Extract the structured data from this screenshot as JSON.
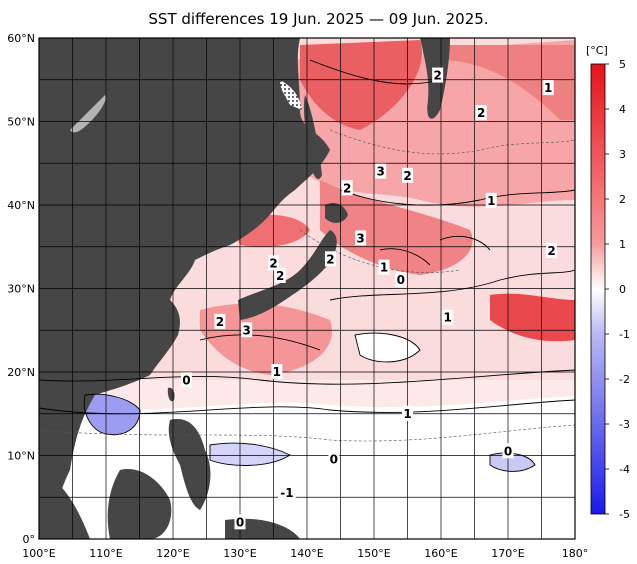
{
  "title": "SST differences 19 Jun. 2025 — 09 Jun. 2025.",
  "axes": {
    "lon_labels": [
      "100°E",
      "110°E",
      "120°E",
      "130°E",
      "140°E",
      "150°E",
      "160°E",
      "170°E",
      "180°"
    ],
    "lat_labels": [
      "60°N",
      "50°N",
      "40°N",
      "30°N",
      "20°N",
      "10°N",
      "0°"
    ],
    "lon_range": [
      100,
      180
    ],
    "lat_range": [
      0,
      60
    ]
  },
  "colorbar": {
    "unit": "[°C]",
    "tick_labels": [
      "5",
      "4",
      "3",
      "2",
      "1",
      "0",
      "-1",
      "-2",
      "-3",
      "-4",
      "-5"
    ],
    "max_color": "#e8131a",
    "zero_color": "#ffffff",
    "min_color": "#1a1aee"
  },
  "contour_labels": [
    {
      "text": "2",
      "lon": 159.5,
      "lat": 55.5
    },
    {
      "text": "2",
      "lon": 166,
      "lat": 51
    },
    {
      "text": "1",
      "lon": 176,
      "lat": 54
    },
    {
      "text": "3",
      "lon": 151,
      "lat": 44
    },
    {
      "text": "2",
      "lon": 155,
      "lat": 43.5
    },
    {
      "text": "2",
      "lon": 146,
      "lat": 42
    },
    {
      "text": "1",
      "lon": 167.5,
      "lat": 40.5
    },
    {
      "text": "3",
      "lon": 148,
      "lat": 36
    },
    {
      "text": "2",
      "lon": 143.5,
      "lat": 33.5
    },
    {
      "text": "1",
      "lon": 151.5,
      "lat": 32.5
    },
    {
      "text": "0",
      "lon": 154,
      "lat": 31
    },
    {
      "text": "2",
      "lon": 176.5,
      "lat": 34.5
    },
    {
      "text": "2",
      "lon": 135,
      "lat": 33
    },
    {
      "text": "2",
      "lon": 136,
      "lat": 31.5
    },
    {
      "text": "1",
      "lon": 161,
      "lat": 26.5
    },
    {
      "text": "2",
      "lon": 127,
      "lat": 26
    },
    {
      "text": "3",
      "lon": 131,
      "lat": 25
    },
    {
      "text": "1",
      "lon": 135.5,
      "lat": 20
    },
    {
      "text": "0",
      "lon": 122,
      "lat": 19
    },
    {
      "text": "1",
      "lon": 155,
      "lat": 15
    },
    {
      "text": "0",
      "lon": 144,
      "lat": 9.5
    },
    {
      "text": "0",
      "lon": 170,
      "lat": 10.5
    },
    {
      "text": "-1",
      "lon": 137,
      "lat": 5.5
    },
    {
      "text": "0",
      "lon": 130,
      "lat": 2
    }
  ],
  "colors": {
    "land": "#464646",
    "lake": "#b4b4b4",
    "grid": "#000000",
    "frame": "#000000"
  }
}
